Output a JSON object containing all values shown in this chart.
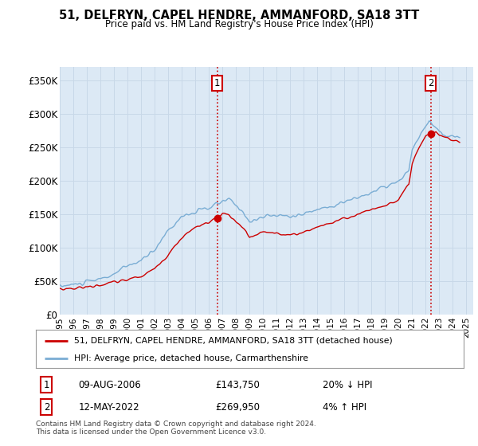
{
  "title": "51, DELFRYN, CAPEL HENDRE, AMMANFORD, SA18 3TT",
  "subtitle": "Price paid vs. HM Land Registry's House Price Index (HPI)",
  "bg_color": "#dce9f5",
  "plot_bg_color": "#dce9f5",
  "outer_bg": "#ffffff",
  "red_line_color": "#cc0000",
  "blue_line_color": "#7aadd4",
  "grid_color": "#c8d8e8",
  "annotation1_date": "09-AUG-2006",
  "annotation1_price": "£143,750",
  "annotation1_hpi": "20% ↓ HPI",
  "annotation2_date": "12-MAY-2022",
  "annotation2_price": "£269,950",
  "annotation2_hpi": "4% ↑ HPI",
  "legend_line1": "51, DELFRYN, CAPEL HENDRE, AMMANFORD, SA18 3TT (detached house)",
  "legend_line2": "HPI: Average price, detached house, Carmarthenshire",
  "footer": "Contains HM Land Registry data © Crown copyright and database right 2024.\nThis data is licensed under the Open Government Licence v3.0.",
  "ylim": [
    0,
    370000
  ],
  "yticks": [
    0,
    50000,
    100000,
    150000,
    200000,
    250000,
    300000,
    350000
  ],
  "ytick_labels": [
    "£0",
    "£50K",
    "£100K",
    "£150K",
    "£200K",
    "£250K",
    "£300K",
    "£350K"
  ],
  "xmin_year": 1995.0,
  "xmax_year": 2025.5,
  "xticks": [
    1995,
    1996,
    1997,
    1998,
    1999,
    2000,
    2001,
    2002,
    2003,
    2004,
    2005,
    2006,
    2007,
    2008,
    2009,
    2010,
    2011,
    2012,
    2013,
    2014,
    2015,
    2016,
    2017,
    2018,
    2019,
    2020,
    2021,
    2022,
    2023,
    2024,
    2025
  ],
  "marker1_x": 2006.61,
  "marker1_y": 143750,
  "marker2_x": 2022.37,
  "marker2_y": 269950
}
